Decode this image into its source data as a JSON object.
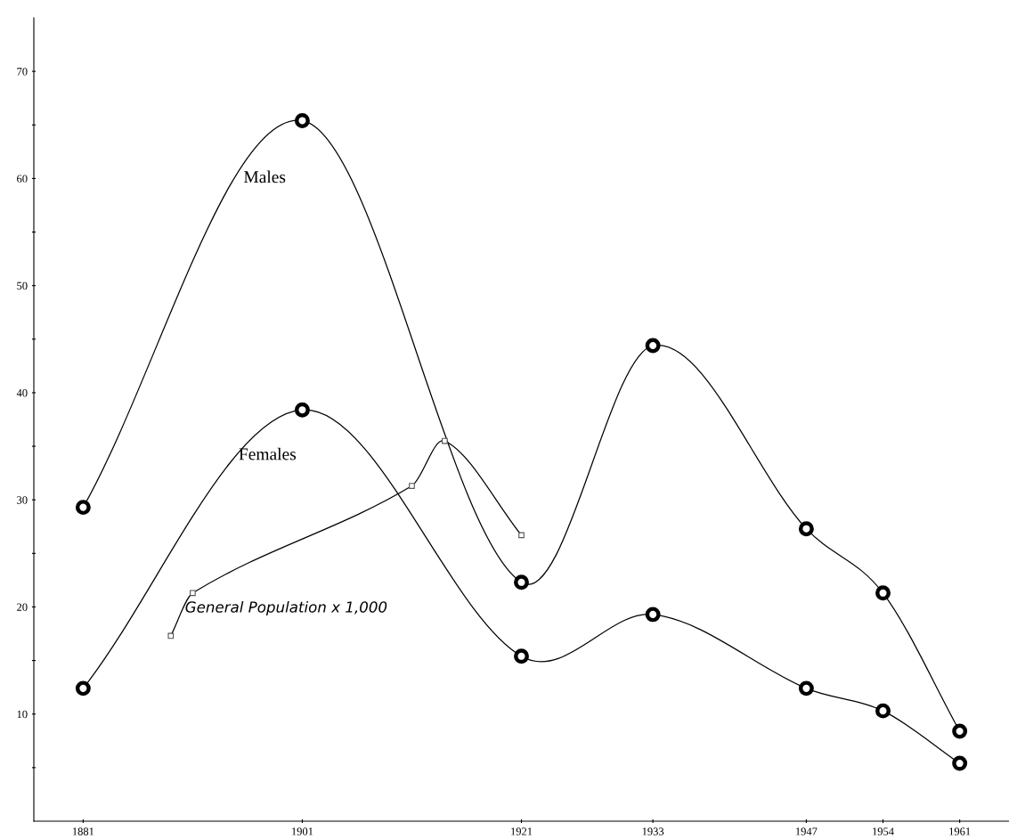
{
  "chart_data": {
    "type": "line",
    "xlim": [
      1876.5,
      1965.5
    ],
    "xticks": [
      1881,
      1901,
      1921,
      1933,
      1947,
      1954,
      1961
    ],
    "ylim": [
      0,
      75
    ],
    "yticks": [
      {
        "value": 5,
        "label": null
      },
      10,
      {
        "value": 15,
        "label": null
      },
      20,
      {
        "value": 25,
        "label": null
      },
      30,
      {
        "value": 35,
        "label": null
      },
      40,
      {
        "value": 45,
        "label": null
      },
      50,
      {
        "value": 55,
        "label": null
      },
      60,
      {
        "value": 65,
        "label": null
      },
      70
    ],
    "grid": false,
    "legend": false,
    "line_style": "solid",
    "series": [
      {
        "name": "Males",
        "color": "#000000",
        "marker": "circle",
        "x": [
          1881,
          1901,
          1921,
          1933,
          1947,
          1954,
          1961
        ],
        "values": [
          29.3,
          65.4,
          22.3,
          44.4,
          27.3,
          21.3,
          8.4
        ]
      },
      {
        "name": "Females",
        "color": "#000000",
        "marker": "circle",
        "x": [
          1881,
          1901,
          1921,
          1933,
          1947,
          1954,
          1961
        ],
        "values": [
          12.4,
          38.4,
          15.4,
          19.3,
          12.4,
          10.3,
          5.4
        ]
      },
      {
        "name": "General Population x 1,000",
        "color": "#000000",
        "marker": "square",
        "x": [
          1889,
          1891,
          1911,
          1914,
          1921
        ],
        "values": [
          17.3,
          21.3,
          31.3,
          35.5,
          26.7
        ]
      }
    ]
  }
}
